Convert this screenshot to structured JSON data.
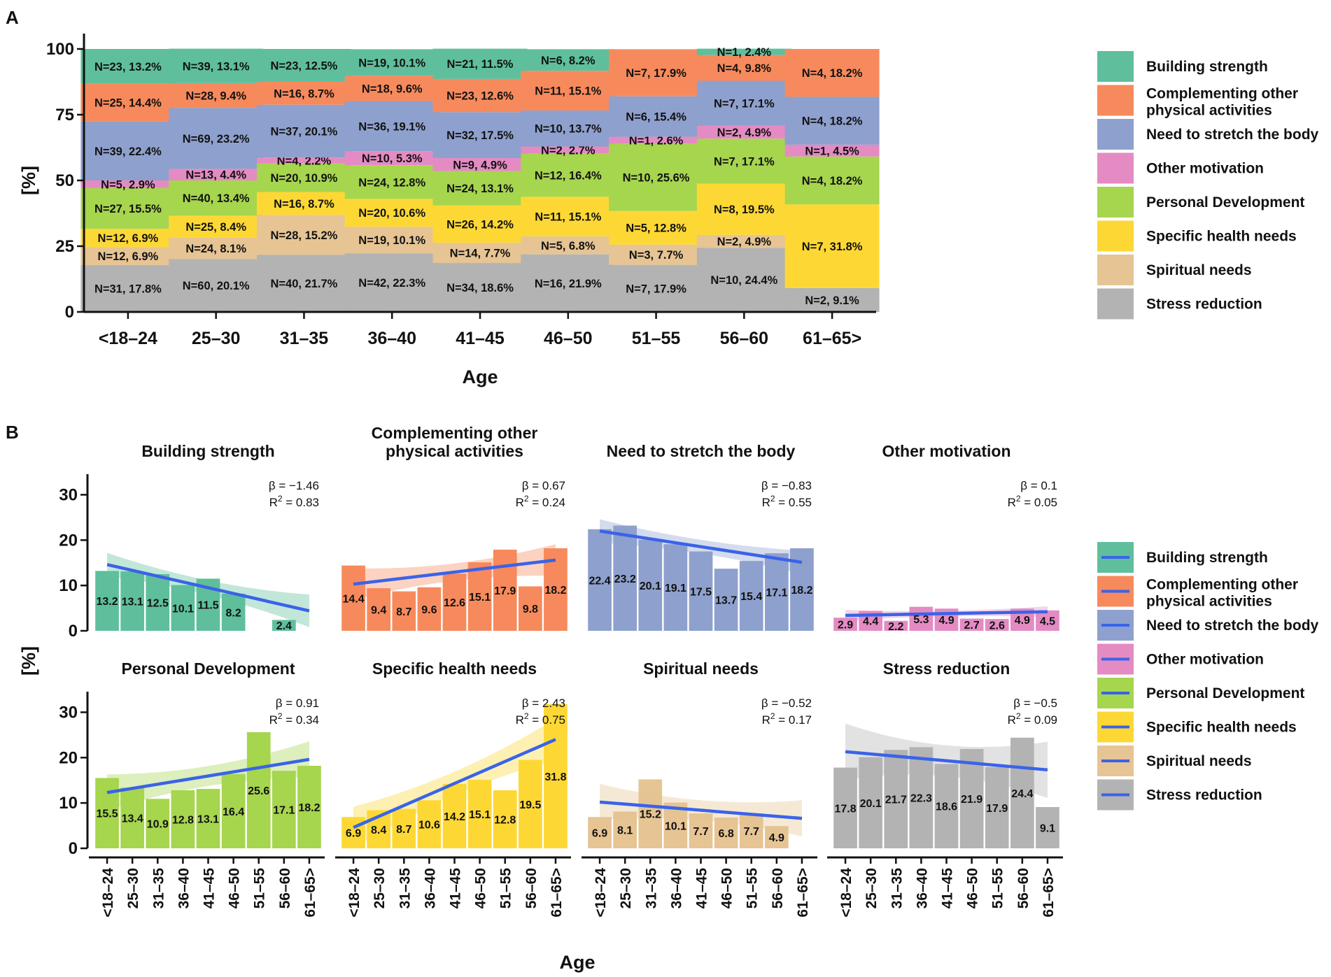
{
  "figure": {
    "panel_a_letter": "A",
    "panel_b_letter": "B"
  },
  "colors": {
    "Building strength": "#5fbf9c",
    "Complementing other physical activities": "#f78a5c",
    "Need to stretch the body": "#8ea0cd",
    "Other motivation": "#e48bc3",
    "Personal Development": "#a6d54e",
    "Specific health needs": "#fdd835",
    "Spiritual needs": "#e6c494",
    "Stress reduction": "#b3b3b3",
    "trend_line": "#3a63e8"
  },
  "legend": {
    "items": [
      {
        "name": "Building strength",
        "lines": [
          "Building strength"
        ]
      },
      {
        "name": "Complementing other physical activities",
        "lines": [
          "Complementing other",
          " physical activities"
        ]
      },
      {
        "name": "Need to stretch the body",
        "lines": [
          "Need to stretch the body"
        ]
      },
      {
        "name": "Other motivation",
        "lines": [
          "Other motivation"
        ]
      },
      {
        "name": "Personal Development",
        "lines": [
          "Personal Development"
        ]
      },
      {
        "name": "Specific health needs",
        "lines": [
          "Specific health needs"
        ]
      },
      {
        "name": "Spiritual needs",
        "lines": [
          "Spiritual needs"
        ]
      },
      {
        "name": "Stress reduction",
        "lines": [
          "Stress reduction"
        ]
      }
    ]
  },
  "chart_data": [
    {
      "type": "bar",
      "stacked": true,
      "xlabel": "Age",
      "ylabel": "[%]",
      "ylim": [
        0,
        100
      ],
      "yticks": [
        0,
        25,
        50,
        75,
        100
      ],
      "categories": [
        "<18–24",
        "25–30",
        "31–35",
        "36–40",
        "41–45",
        "46–50",
        "51–55",
        "56–60",
        "61–65>"
      ],
      "stack_order_bottom_to_top": [
        "Stress reduction",
        "Spiritual needs",
        "Specific health needs",
        "Personal Development",
        "Other motivation",
        "Need to stretch the body",
        "Complementing other physical activities",
        "Building strength"
      ],
      "series": [
        {
          "name": "Stress reduction",
          "values": [
            17.8,
            20.1,
            21.7,
            22.3,
            18.6,
            21.9,
            17.9,
            24.4,
            9.1
          ],
          "labels": [
            "N=31, 17.8%",
            "N=60, 20.1%",
            "N=40, 21.7%",
            "N=42, 22.3%",
            "N=34, 18.6%",
            "N=16, 21.9%",
            "N=7, 17.9%",
            "N=10, 24.4%",
            "N=2, 9.1%"
          ]
        },
        {
          "name": "Spiritual needs",
          "values": [
            6.9,
            8.1,
            15.2,
            10.1,
            7.7,
            6.8,
            7.7,
            4.9,
            0
          ],
          "labels": [
            "N=12, 6.9%",
            "N=24, 8.1%",
            "N=28, 15.2%",
            "N=19, 10.1%",
            "N=14, 7.7%",
            "N=5, 6.8%",
            "N=3, 7.7%",
            "N=2, 4.9%",
            ""
          ]
        },
        {
          "name": "Specific health needs",
          "values": [
            6.9,
            8.4,
            8.7,
            10.6,
            14.2,
            15.1,
            12.8,
            19.5,
            31.8
          ],
          "labels": [
            "N=12, 6.9%",
            "N=25, 8.4%",
            "N=16, 8.7%",
            "N=20, 10.6%",
            "N=26, 14.2%",
            "N=11, 15.1%",
            "N=5, 12.8%",
            "N=8, 19.5%",
            "N=7, 31.8%"
          ]
        },
        {
          "name": "Personal Development",
          "values": [
            15.5,
            13.4,
            10.9,
            12.8,
            13.1,
            16.4,
            25.6,
            17.1,
            18.2
          ],
          "labels": [
            "N=27, 15.5%",
            "N=40, 13.4%",
            "N=20, 10.9%",
            "N=24, 12.8%",
            "N=24, 13.1%",
            "N=12, 16.4%",
            "N=10, 25.6%",
            "N=7, 17.1%",
            "N=4, 18.2%"
          ]
        },
        {
          "name": "Other motivation",
          "values": [
            2.9,
            4.4,
            2.2,
            5.3,
            4.9,
            2.7,
            2.6,
            4.9,
            4.5
          ],
          "labels": [
            "N=5, 2.9%",
            "N=13, 4.4%",
            "N=4, 2.2%",
            "N=10, 5.3%",
            "N=9, 4.9%",
            "N=2, 2.7%",
            "N=1, 2.6%",
            "N=2, 4.9%",
            "N=1, 4.5%"
          ]
        },
        {
          "name": "Need to stretch the body",
          "values": [
            22.4,
            23.2,
            20.1,
            19.1,
            17.5,
            13.7,
            15.4,
            17.1,
            18.2
          ],
          "labels": [
            "N=39, 22.4%",
            "N=69, 23.2%",
            "N=37, 20.1%",
            "N=36, 19.1%",
            "N=32, 17.5%",
            "N=10, 13.7%",
            "N=6, 15.4%",
            "N=7, 17.1%",
            "N=4, 18.2%"
          ]
        },
        {
          "name": "Complementing other physical activities",
          "values": [
            14.4,
            9.4,
            8.7,
            9.6,
            12.6,
            15.1,
            17.9,
            9.8,
            18.2
          ],
          "labels": [
            "N=25, 14.4%",
            "N=28, 9.4%",
            "N=16, 8.7%",
            "N=18, 9.6%",
            "N=23, 12.6%",
            "N=11, 15.1%",
            "N=7, 17.9%",
            "N=4, 9.8%",
            "N=4, 18.2%"
          ]
        },
        {
          "name": "Building strength",
          "values": [
            13.2,
            13.1,
            12.5,
            10.1,
            11.5,
            8.2,
            0,
            2.4,
            0
          ],
          "labels": [
            "N=23, 13.2%",
            "N=39, 13.1%",
            "N=23, 12.5%",
            "N=19, 10.1%",
            "N=21, 11.5%",
            "N=6, 8.2%",
            "",
            "N=1, 2.4%",
            ""
          ]
        }
      ]
    },
    {
      "type": "bar",
      "faceted": true,
      "xlabel": "Age",
      "ylabel": "[%]",
      "ylim": [
        0,
        33
      ],
      "yticks": [
        0,
        10,
        20,
        30
      ],
      "categories": [
        "<18–24",
        "25–30",
        "31–35",
        "36–40",
        "41–45",
        "46–50",
        "51–55",
        "56–60",
        "61–65>"
      ],
      "trend": "linear fit with confidence band",
      "facets": [
        {
          "name": "Building strength",
          "title_lines": [
            "Building strength"
          ],
          "values": [
            13.2,
            13.1,
            12.5,
            10.1,
            11.5,
            8.2,
            null,
            2.4,
            null
          ],
          "beta": "β = −1.46",
          "r2": "0.83",
          "fit": [
            14.6,
            4.4
          ],
          "band_halfwidth": [
            2.6,
            1.6,
            3.6
          ]
        },
        {
          "name": "Complementing other physical activities",
          "title_lines": [
            "Complementing other",
            "physical activities"
          ],
          "values": [
            14.4,
            9.4,
            8.7,
            9.6,
            12.6,
            15.1,
            17.9,
            9.8,
            18.2
          ],
          "beta": "β = 0.67",
          "r2": "0.24",
          "fit": [
            10.3,
            15.6
          ],
          "band_halfwidth": [
            3.5,
            1.9,
            3.5
          ]
        },
        {
          "name": "Need to stretch the body",
          "title_lines": [
            "Need to stretch the body"
          ],
          "values": [
            22.4,
            23.2,
            20.1,
            19.1,
            17.5,
            13.7,
            15.4,
            17.1,
            18.2
          ],
          "beta": "β = −0.83",
          "r2": "0.55",
          "fit": [
            22.0,
            15.1
          ],
          "band_halfwidth": [
            2.6,
            1.5,
            2.6
          ]
        },
        {
          "name": "Other motivation",
          "title_lines": [
            "Other motivation"
          ],
          "values": [
            2.9,
            4.4,
            2.2,
            5.3,
            4.9,
            2.7,
            2.6,
            4.9,
            4.5
          ],
          "beta": "β = 0.1",
          "r2": "0.05",
          "fit": [
            3.4,
            4.2
          ],
          "band_halfwidth": [
            1.2,
            0.6,
            1.2
          ]
        },
        {
          "name": "Personal Development",
          "title_lines": [
            "Personal Development"
          ],
          "values": [
            15.5,
            13.4,
            10.9,
            12.8,
            13.1,
            16.4,
            25.6,
            17.1,
            18.2
          ],
          "beta": "β = 0.91",
          "r2": "0.34",
          "fit": [
            12.3,
            19.6
          ],
          "band_halfwidth": [
            4.0,
            2.2,
            4.0
          ]
        },
        {
          "name": "Specific health needs",
          "title_lines": [
            "Specific health needs"
          ],
          "values": [
            6.9,
            8.4,
            8.7,
            10.6,
            14.2,
            15.1,
            12.8,
            19.5,
            31.8
          ],
          "beta": "β = 2.43",
          "r2": "0.75",
          "fit": [
            4.6,
            24.0
          ],
          "band_halfwidth": [
            4.6,
            2.6,
            4.6
          ]
        },
        {
          "name": "Spiritual needs",
          "title_lines": [
            "Spiritual needs"
          ],
          "values": [
            6.9,
            8.1,
            15.2,
            10.1,
            7.7,
            6.8,
            7.7,
            4.9,
            null
          ],
          "beta": "β = −0.52",
          "r2": "0.17",
          "fit": [
            10.2,
            6.6
          ],
          "band_halfwidth": [
            4.0,
            2.2,
            4.0
          ]
        },
        {
          "name": "Stress reduction",
          "title_lines": [
            "Stress reduction"
          ],
          "values": [
            17.8,
            20.1,
            21.7,
            22.3,
            18.6,
            21.9,
            17.9,
            24.4,
            9.1
          ],
          "beta": "β = −0.5",
          "r2": "0.09",
          "fit": [
            21.3,
            17.3
          ],
          "band_halfwidth": [
            6.2,
            3.4,
            6.2
          ]
        }
      ]
    }
  ]
}
